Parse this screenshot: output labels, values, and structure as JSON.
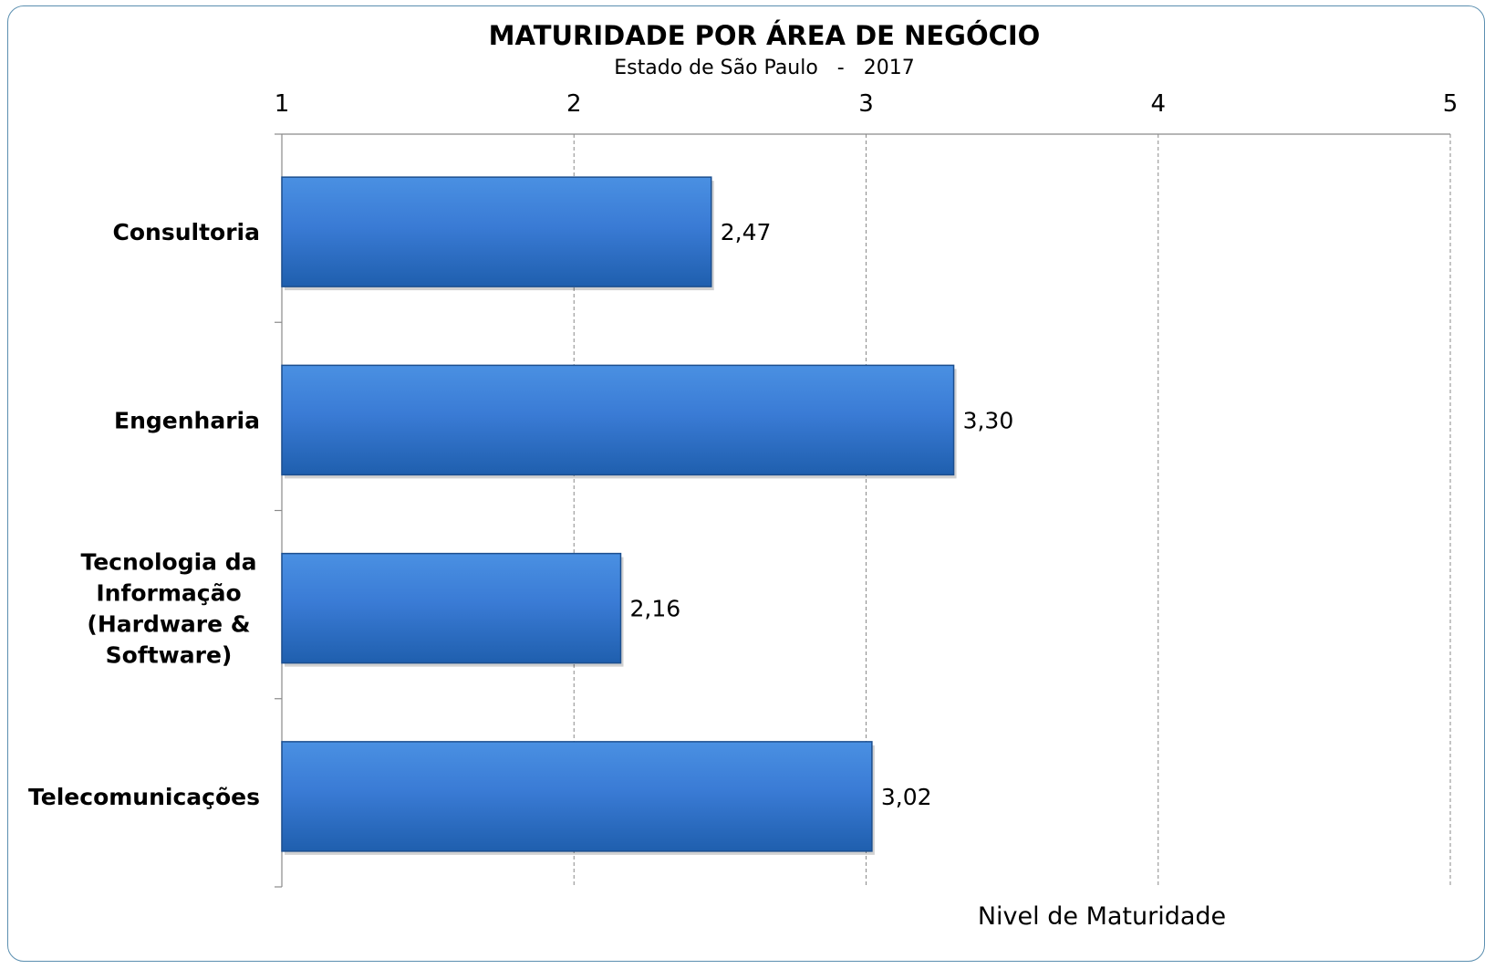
{
  "chart_data": {
    "type": "bar",
    "orientation": "horizontal",
    "title": "MATURIDADE POR ÁREA DE NEGÓCIO",
    "subtitle": "Estado de São Paulo   -   2017",
    "xlabel": "Nivel de Maturidade",
    "ylabel": "",
    "categories": [
      [
        "Consultoria"
      ],
      [
        "Engenharia"
      ],
      [
        "Tecnologia da",
        "Informação",
        "(Hardware &",
        "Software)"
      ],
      [
        "Telecomunicações"
      ]
    ],
    "values": [
      2.47,
      3.3,
      2.16,
      3.02
    ],
    "value_labels": [
      "2,47",
      "3,30",
      "2,16",
      "3,02"
    ],
    "xlim": [
      1,
      5
    ],
    "xticks": [
      1,
      2,
      3,
      4,
      5
    ],
    "xtick_labels": [
      "1",
      "2",
      "3",
      "4",
      "5"
    ],
    "x_axis_position": "top",
    "grid": true,
    "legend": "none",
    "colors": {
      "bar_top": "#4a90e2",
      "bar_mid": "#3a7bd5",
      "bar_bottom": "#1f5fae",
      "bar_edge": "#1c4f8f",
      "frame_border": "#5b8fb0"
    }
  }
}
